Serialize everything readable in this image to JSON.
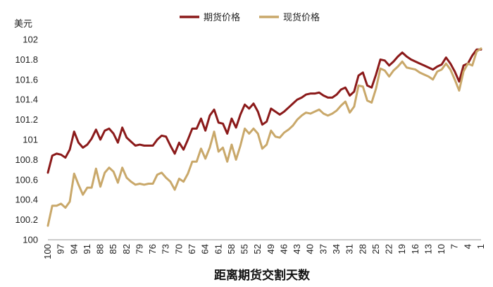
{
  "chart_data": {
    "type": "line",
    "ylabel": "美元",
    "xlabel": "距离期货交割天数",
    "ylim": [
      100,
      102
    ],
    "yticks": [
      "100",
      "100.2",
      "100.4",
      "100.6",
      "100.8",
      "101",
      "101.2",
      "101.4",
      "101.6",
      "101.8",
      "102"
    ],
    "x_tick_labels": [
      "100",
      "97",
      "94",
      "91",
      "88",
      "85",
      "82",
      "79",
      "76",
      "73",
      "70",
      "67",
      "64",
      "61",
      "58",
      "55",
      "52",
      "49",
      "46",
      "43",
      "40",
      "37",
      "34",
      "31",
      "28",
      "25",
      "22",
      "19",
      "16",
      "13",
      "10",
      "7",
      "4",
      "1"
    ],
    "x_start": 100,
    "x_end": 1,
    "legend": {
      "position": "top-center"
    },
    "series": [
      {
        "name": "期货价格",
        "color": "#8b1a1a",
        "values": [
          100.67,
          100.84,
          100.86,
          100.85,
          100.82,
          100.9,
          101.08,
          100.97,
          100.92,
          100.95,
          101.01,
          101.1,
          101.0,
          101.09,
          101.11,
          101.06,
          100.97,
          101.12,
          101.02,
          100.98,
          100.94,
          100.95,
          100.94,
          100.94,
          100.94,
          101.0,
          101.04,
          101.03,
          100.94,
          100.86,
          100.97,
          100.9,
          101.0,
          101.11,
          101.11,
          101.21,
          101.09,
          101.24,
          101.3,
          101.17,
          101.16,
          101.06,
          101.21,
          101.12,
          101.25,
          101.35,
          101.31,
          101.36,
          101.28,
          101.15,
          101.18,
          101.31,
          101.28,
          101.25,
          101.28,
          101.32,
          101.36,
          101.4,
          101.42,
          101.45,
          101.46,
          101.46,
          101.47,
          101.44,
          101.42,
          101.42,
          101.45,
          101.5,
          101.52,
          101.44,
          101.48,
          101.64,
          101.67,
          101.54,
          101.52,
          101.65,
          101.8,
          101.79,
          101.74,
          101.78,
          101.83,
          101.87,
          101.83,
          101.8,
          101.78,
          101.76,
          101.74,
          101.72,
          101.7,
          101.73,
          101.75,
          101.82,
          101.76,
          101.68,
          101.58,
          101.74,
          101.76,
          101.84,
          101.9,
          101.9
        ]
      },
      {
        "name": "现货价格",
        "color": "#c9a86a",
        "values": [
          100.14,
          100.34,
          100.34,
          100.36,
          100.32,
          100.38,
          100.66,
          100.55,
          100.45,
          100.52,
          100.52,
          100.71,
          100.53,
          100.67,
          100.72,
          100.68,
          100.57,
          100.72,
          100.62,
          100.58,
          100.55,
          100.56,
          100.55,
          100.56,
          100.56,
          100.65,
          100.67,
          100.62,
          100.58,
          100.5,
          100.61,
          100.58,
          100.66,
          100.78,
          100.78,
          100.91,
          100.81,
          100.92,
          101.08,
          100.88,
          100.92,
          100.78,
          100.95,
          100.8,
          100.94,
          101.11,
          101.06,
          101.11,
          101.06,
          100.91,
          100.95,
          101.09,
          101.03,
          101.02,
          101.07,
          101.1,
          101.14,
          101.2,
          101.24,
          101.27,
          101.26,
          101.28,
          101.3,
          101.26,
          101.24,
          101.26,
          101.29,
          101.34,
          101.38,
          101.27,
          101.33,
          101.54,
          101.53,
          101.39,
          101.37,
          101.51,
          101.71,
          101.69,
          101.63,
          101.69,
          101.73,
          101.78,
          101.72,
          101.71,
          101.7,
          101.67,
          101.65,
          101.63,
          101.6,
          101.68,
          101.7,
          101.76,
          101.7,
          101.6,
          101.49,
          101.68,
          101.76,
          101.74,
          101.88,
          101.91
        ]
      }
    ]
  }
}
